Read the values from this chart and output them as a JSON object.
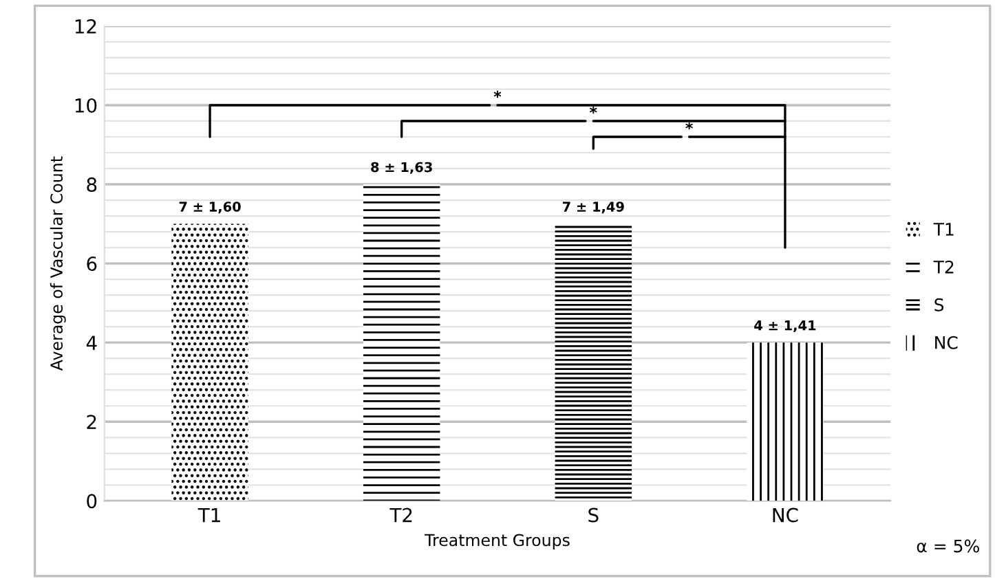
{
  "chart_data": {
    "type": "bar",
    "xlabel": "Treatment Groups",
    "ylabel": "Average of Vascular Count",
    "categories": [
      "T1",
      "T2",
      "S",
      "NC"
    ],
    "series": [
      {
        "name": "T1",
        "color": "#000000",
        "values": [
          7,
          null,
          null,
          null
        ],
        "value_labels": [
          "7 ± 1,60",
          null,
          null,
          null
        ]
      },
      {
        "name": "T2",
        "color": "#000000",
        "values": [
          null,
          8,
          null,
          null
        ],
        "value_labels": [
          null,
          "8 ± 1,63",
          null,
          null
        ]
      },
      {
        "name": "S",
        "color": "#000000",
        "values": [
          null,
          null,
          7,
          null
        ],
        "value_labels": [
          null,
          null,
          "7 ± 1,49",
          null
        ]
      },
      {
        "name": "NC",
        "color": "#000000",
        "values": [
          null,
          null,
          null,
          4
        ],
        "value_labels": [
          null,
          null,
          null,
          "4 ± 1,41"
        ]
      }
    ],
    "ylim": [
      0,
      12
    ],
    "yticks": [
      0,
      2,
      4,
      6,
      8,
      10,
      12
    ],
    "grid": "y",
    "legend": "right",
    "annotations": [
      "*",
      "*",
      "*",
      "α = 5%"
    ]
  }
}
